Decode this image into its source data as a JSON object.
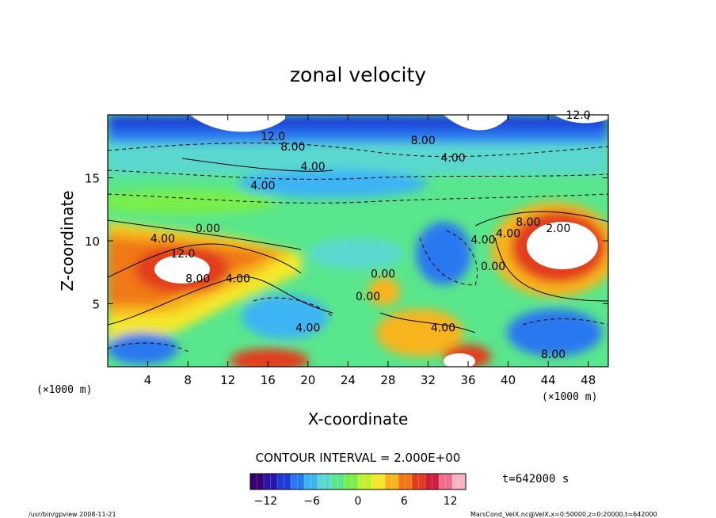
{
  "chart_data": {
    "type": "heatmap",
    "title": "zonal velocity",
    "xlabel": "X-coordinate",
    "ylabel": "Z-coordinate",
    "x_unit_label": "(×1000 m)",
    "y_unit_label": "(×1000 m)",
    "x_ticks": [
      4,
      8,
      12,
      16,
      20,
      24,
      28,
      32,
      36,
      40,
      44,
      48
    ],
    "y_ticks": [
      5,
      10,
      15
    ],
    "xlim": [
      0,
      50
    ],
    "ylim": [
      0,
      20
    ],
    "contour_interval_text": "CONTOUR INTERVAL = 2.000E+00",
    "time_text": "t=642000 s",
    "colorbar": {
      "ticks": [
        -12,
        -6,
        0,
        6,
        12
      ],
      "range": [
        -14,
        14
      ],
      "colors": [
        "#3a0078",
        "#2a14a8",
        "#1a3cd8",
        "#2a78f0",
        "#3cb4f4",
        "#5ad8d0",
        "#5ae68c",
        "#7aee48",
        "#c0f030",
        "#f4e82a",
        "#f8b41e",
        "#f07818",
        "#e23c1c",
        "#d21e3c",
        "#ee6e8c",
        "#f8b4c4"
      ]
    },
    "contour_labels": [
      {
        "text": "12.0",
        "x": 16.5,
        "y": 18.3
      },
      {
        "text": "8.00",
        "x": 18.5,
        "y": 17.5
      },
      {
        "text": "8.00",
        "x": 31.5,
        "y": 18.0
      },
      {
        "text": "4.00",
        "x": 34.5,
        "y": 16.6
      },
      {
        "text": "12.0",
        "x": 47.0,
        "y": 20.0
      },
      {
        "text": "4.00",
        "x": 20.5,
        "y": 15.9
      },
      {
        "text": "4.00",
        "x": 15.5,
        "y": 14.4
      },
      {
        "text": "4.00",
        "x": 5.5,
        "y": 10.2
      },
      {
        "text": "0.00",
        "x": 10.0,
        "y": 11.0
      },
      {
        "text": "12.0",
        "x": 7.5,
        "y": 9.0
      },
      {
        "text": "8.00",
        "x": 9.0,
        "y": 7.0
      },
      {
        "text": "4.00",
        "x": 13.0,
        "y": 7.0
      },
      {
        "text": "0.00",
        "x": 27.5,
        "y": 7.4
      },
      {
        "text": "0.00",
        "x": 26.0,
        "y": 5.6
      },
      {
        "text": "4.00",
        "x": 20.0,
        "y": 3.1
      },
      {
        "text": "4.00",
        "x": 33.5,
        "y": 3.1
      },
      {
        "text": "4.00",
        "x": 37.5,
        "y": 10.1
      },
      {
        "text": "0.00",
        "x": 38.5,
        "y": 8.0
      },
      {
        "text": "4.00",
        "x": 40.0,
        "y": 10.6
      },
      {
        "text": "8.00",
        "x": 42.0,
        "y": 11.5
      },
      {
        "text": "2.00",
        "x": 45.0,
        "y": 11.0
      },
      {
        "text": "8.00",
        "x": 44.5,
        "y": 1.0
      }
    ],
    "grid": false
  },
  "footer": {
    "left": "/usr/bin/gpview  2008-11-21",
    "right": "MarsCond_VelX.nc@VelX,x=0:50000,z=0:20000,t=642000"
  }
}
